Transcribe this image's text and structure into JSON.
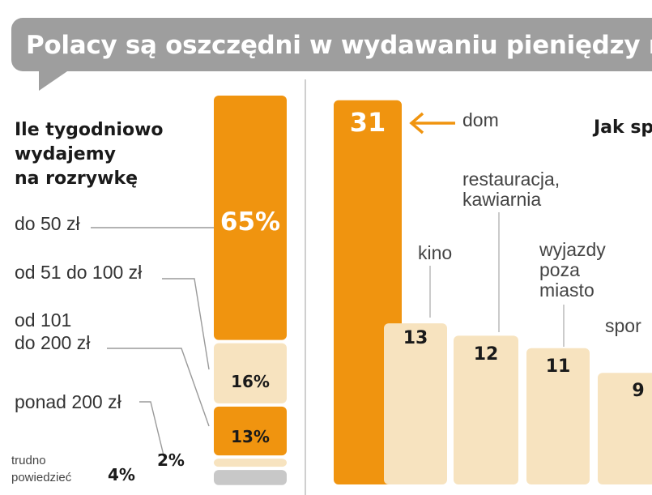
{
  "title": "Polacy są oszczędni w wydawaniu pieniędzy na",
  "chart_data": [
    {
      "type": "bar",
      "subtype": "stacked-100",
      "title": "Ile tygodniowo wydajemy na rozrywkę",
      "unit": "%",
      "segments": [
        {
          "label": "do 50 zł",
          "value": 65,
          "value_label": "65%",
          "color": "#f0940f"
        },
        {
          "label": "od 51 do 100 zł",
          "value": 16,
          "value_label": "16%",
          "color": "#f7e3bf"
        },
        {
          "label": "od 101 do 200 zł",
          "value": 13,
          "value_label": "13%",
          "color": "#f0940f"
        },
        {
          "label": "ponad 200 zł",
          "value": 2,
          "value_label": "2%",
          "color": "#f7e3bf"
        },
        {
          "label": "trudno powiedzieć",
          "value": 4,
          "value_label": "4%",
          "color": "#c8c8c8"
        }
      ]
    },
    {
      "type": "bar",
      "title": "Jak sp",
      "categories": [
        "dom",
        "kino",
        "restauracja, kawiarnia",
        "wyjazdy poza miasto",
        "spor"
      ],
      "values": [
        31,
        13,
        12,
        11,
        9
      ],
      "colors": [
        "#f0940f",
        "#f7e3bf",
        "#f7e3bf",
        "#f7e3bf",
        "#f7e3bf"
      ],
      "ylim": [
        0,
        31
      ],
      "legend": "none",
      "grid": false
    }
  ],
  "left": {
    "heading": [
      "Ile tygodniowo",
      "wydajemy",
      "na rozrywkę"
    ],
    "label_lines": {
      "seg0": [
        "do 50 zł"
      ],
      "seg1": [
        "od 51 do 100 zł"
      ],
      "seg2": [
        "od 101",
        "do 200 zł"
      ],
      "seg3": [
        "ponad 200 zł"
      ],
      "seg4": [
        "trudno",
        "powiedzieć"
      ]
    }
  },
  "right": {
    "label_lines": {
      "bar0": [
        "dom"
      ],
      "bar1": [
        "kino"
      ],
      "bar2": [
        "restauracja,",
        "kawiarnia"
      ],
      "bar3": [
        "wyjazdy",
        "poza",
        "miasto"
      ],
      "bar4": [
        "spor"
      ]
    }
  }
}
